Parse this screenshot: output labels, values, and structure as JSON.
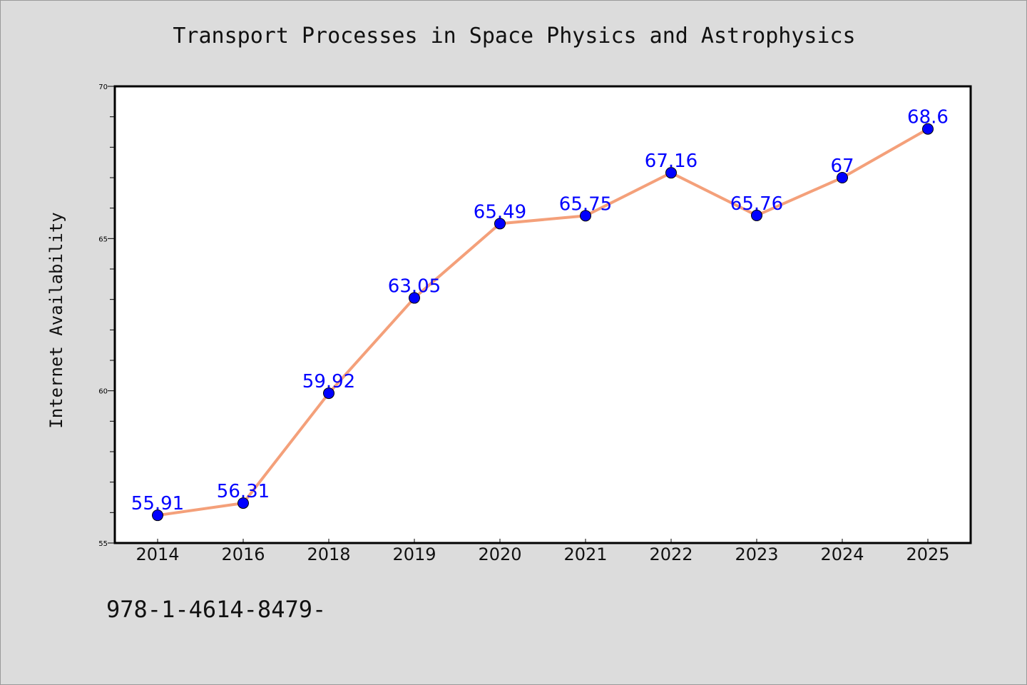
{
  "chart_data": {
    "type": "line",
    "title": "Transport Processes in Space Physics and Astrophysics",
    "xlabel": "",
    "ylabel": "Internet Availability",
    "categories": [
      "2014",
      "2016",
      "2018",
      "2019",
      "2020",
      "2021",
      "2022",
      "2023",
      "2024",
      "2025"
    ],
    "series": [
      {
        "values": [
          55.91,
          56.31,
          59.92,
          63.05,
          65.49,
          65.75,
          67.16,
          65.76,
          67,
          68.6
        ],
        "data_labels": [
          "55.91",
          "56.31",
          "59.92",
          "63.05",
          "65.49",
          "65.75",
          "67.16",
          "65.76",
          "67",
          "68.6"
        ],
        "line_color": "#f4a07a",
        "marker_color": "#0000ff",
        "label_color": "#0000ff"
      }
    ],
    "ylim": [
      55,
      70
    ],
    "y_ticks": [
      "55",
      "60",
      "65",
      "70"
    ],
    "grid": false,
    "legend": "none"
  },
  "footer_text": "978-1-4614-8479-"
}
